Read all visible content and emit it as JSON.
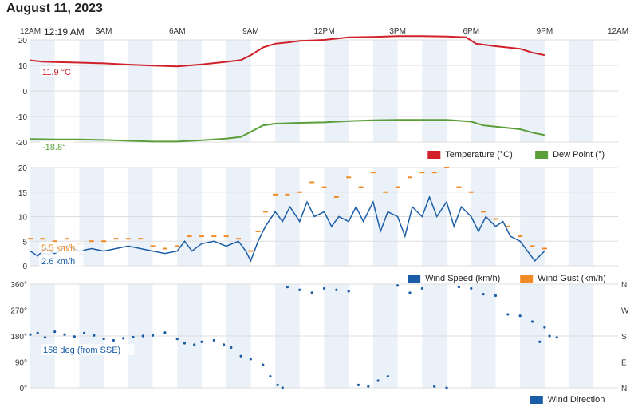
{
  "page": {
    "date": "August 11, 2023"
  },
  "time_axis": {
    "labels": [
      "12AM",
      "3AM",
      "6AM",
      "9AM",
      "12PM",
      "3PM",
      "6PM",
      "9PM",
      "12AM"
    ],
    "cursor_label": "12:19 AM"
  },
  "colors": {
    "temperature": "#d0202a",
    "dew_point": "#5a9e3a",
    "wind_speed": "#1a5da6",
    "wind_gust": "#f08a24",
    "wind_direction": "#1a5da6",
    "band": "#eaf1f8",
    "grid": "#dddddd"
  },
  "chart_data": [
    {
      "type": "line",
      "x_unit": "hours",
      "ylim": [
        -20,
        20
      ],
      "y_ticks": [
        20,
        10,
        0,
        -10,
        -20
      ],
      "legend_position": "bottom-right",
      "series": [
        {
          "name": "Temperature (°C)",
          "points": [
            [
              0,
              12
            ],
            [
              0.5,
              11.5
            ],
            [
              1,
              11.3
            ],
            [
              2,
              11.1
            ],
            [
              3,
              10.8
            ],
            [
              4,
              10.3
            ],
            [
              5,
              9.9
            ],
            [
              6,
              9.6
            ],
            [
              6.6,
              10.1
            ],
            [
              7,
              10.4
            ],
            [
              8,
              11.4
            ],
            [
              8.6,
              12.1
            ],
            [
              9,
              14
            ],
            [
              9.5,
              17
            ],
            [
              10,
              18.5
            ],
            [
              10.5,
              19
            ],
            [
              11,
              19.6
            ],
            [
              12,
              20
            ],
            [
              13,
              21
            ],
            [
              14,
              21.2
            ],
            [
              15,
              21.5
            ],
            [
              16,
              21.5
            ],
            [
              17,
              21.3
            ],
            [
              17.8,
              21
            ],
            [
              18.2,
              18.5
            ],
            [
              19,
              17.5
            ],
            [
              20,
              16.5
            ],
            [
              20.5,
              15
            ],
            [
              21,
              14
            ]
          ],
          "current_label": "11.9 °C"
        },
        {
          "name": "Dew Point (°)",
          "points": [
            [
              0,
              -18.8
            ],
            [
              1,
              -19
            ],
            [
              2,
              -19
            ],
            [
              3,
              -19.2
            ],
            [
              4,
              -19.5
            ],
            [
              5,
              -19.8
            ],
            [
              6,
              -19.8
            ],
            [
              7,
              -19.3
            ],
            [
              8,
              -18.7
            ],
            [
              8.6,
              -18
            ],
            [
              9,
              -16
            ],
            [
              9.5,
              -13.5
            ],
            [
              10,
              -12.8
            ],
            [
              11,
              -12.5
            ],
            [
              12,
              -12.3
            ],
            [
              13,
              -11.8
            ],
            [
              14,
              -11.5
            ],
            [
              15,
              -11.3
            ],
            [
              16,
              -11.3
            ],
            [
              17,
              -11.3
            ],
            [
              18,
              -12
            ],
            [
              18.5,
              -13.5
            ],
            [
              19,
              -14
            ],
            [
              19.5,
              -14.5
            ],
            [
              20,
              -15
            ],
            [
              20.5,
              -16.3
            ],
            [
              21,
              -17.3
            ]
          ],
          "current_label": "-18.8°"
        }
      ]
    },
    {
      "type": "line",
      "x_unit": "hours",
      "ylim": [
        0,
        20
      ],
      "y_ticks": [
        20,
        15,
        10,
        5,
        0
      ],
      "legend_position": "bottom-right",
      "series": [
        {
          "name": "Wind Speed (km/h)",
          "points": [
            [
              0,
              3
            ],
            [
              0.3,
              2
            ],
            [
              0.6,
              3.5
            ],
            [
              1,
              2.5
            ],
            [
              1.5,
              4
            ],
            [
              2,
              3
            ],
            [
              2.5,
              3.5
            ],
            [
              3,
              3
            ],
            [
              3.5,
              3.5
            ],
            [
              4,
              4
            ],
            [
              4.5,
              3.5
            ],
            [
              5,
              3
            ],
            [
              5.5,
              2.5
            ],
            [
              6,
              3
            ],
            [
              6.3,
              5
            ],
            [
              6.6,
              3
            ],
            [
              7,
              4.5
            ],
            [
              7.5,
              5
            ],
            [
              8,
              4
            ],
            [
              8.5,
              5
            ],
            [
              8.8,
              3
            ],
            [
              9,
              1
            ],
            [
              9.3,
              5
            ],
            [
              9.6,
              8
            ],
            [
              10,
              11
            ],
            [
              10.3,
              9
            ],
            [
              10.6,
              12
            ],
            [
              11,
              9
            ],
            [
              11.3,
              13
            ],
            [
              11.6,
              10
            ],
            [
              12,
              11
            ],
            [
              12.3,
              8
            ],
            [
              12.6,
              10
            ],
            [
              13,
              9
            ],
            [
              13.3,
              12
            ],
            [
              13.6,
              9
            ],
            [
              14,
              13
            ],
            [
              14.3,
              7
            ],
            [
              14.6,
              11
            ],
            [
              15,
              10
            ],
            [
              15.3,
              6
            ],
            [
              15.6,
              12
            ],
            [
              16,
              10
            ],
            [
              16.3,
              14
            ],
            [
              16.6,
              10
            ],
            [
              17,
              13
            ],
            [
              17.3,
              8
            ],
            [
              17.6,
              12
            ],
            [
              18,
              10
            ],
            [
              18.3,
              7
            ],
            [
              18.6,
              10
            ],
            [
              19,
              8
            ],
            [
              19.3,
              9
            ],
            [
              19.6,
              6
            ],
            [
              20,
              5
            ],
            [
              20.3,
              3
            ],
            [
              20.6,
              1
            ],
            [
              20.8,
              2
            ],
            [
              21,
              3
            ]
          ],
          "current_label": "2.6 km/h"
        },
        {
          "name": "Wind Gust (km/h)",
          "points": [
            [
              0,
              5.5
            ],
            [
              0.5,
              5.5
            ],
            [
              1,
              5
            ],
            [
              1.5,
              5.5
            ],
            [
              2,
              4.5
            ],
            [
              2.5,
              5
            ],
            [
              3,
              5
            ],
            [
              3.5,
              5.5
            ],
            [
              4,
              5.5
            ],
            [
              4.5,
              5.5
            ],
            [
              5,
              4
            ],
            [
              5.5,
              3.5
            ],
            [
              6,
              4
            ],
            [
              6.5,
              6
            ],
            [
              7,
              6
            ],
            [
              7.5,
              6
            ],
            [
              8,
              6
            ],
            [
              8.5,
              5.5
            ],
            [
              9,
              3
            ],
            [
              9.3,
              7
            ],
            [
              9.6,
              11
            ],
            [
              10,
              14.5
            ],
            [
              10.5,
              14.5
            ],
            [
              11,
              15
            ],
            [
              11.5,
              17
            ],
            [
              12,
              16
            ],
            [
              12.5,
              14
            ],
            [
              13,
              18
            ],
            [
              13.5,
              16
            ],
            [
              14,
              19
            ],
            [
              14.5,
              15
            ],
            [
              15,
              16
            ],
            [
              15.5,
              18
            ],
            [
              16,
              19
            ],
            [
              16.5,
              19
            ],
            [
              17,
              20
            ],
            [
              17.5,
              16
            ],
            [
              18,
              15
            ],
            [
              18.5,
              11
            ],
            [
              19,
              9.5
            ],
            [
              19.5,
              8
            ],
            [
              20,
              6
            ],
            [
              20.5,
              4
            ],
            [
              21,
              3.5
            ]
          ],
          "current_label": "5.5 km/h"
        }
      ]
    },
    {
      "type": "scatter",
      "x_unit": "hours",
      "ylim": [
        0,
        360
      ],
      "y_ticks": [
        360,
        270,
        180,
        90,
        0
      ],
      "y_tick_suffix": "°",
      "right_tick_labels": [
        "N",
        "W",
        "S",
        "E",
        "N"
      ],
      "legend_position": "bottom-right",
      "series": [
        {
          "name": "Wind Direction",
          "points": [
            [
              0,
              185
            ],
            [
              0.3,
              190
            ],
            [
              0.6,
              175
            ],
            [
              1,
              195
            ],
            [
              1.4,
              185
            ],
            [
              1.8,
              178
            ],
            [
              2.2,
              190
            ],
            [
              2.6,
              182
            ],
            [
              3,
              170
            ],
            [
              3.4,
              165
            ],
            [
              3.8,
              172
            ],
            [
              4.2,
              176
            ],
            [
              4.6,
              180
            ],
            [
              5,
              182
            ],
            [
              5.5,
              192
            ],
            [
              6,
              170
            ],
            [
              6.3,
              155
            ],
            [
              6.7,
              150
            ],
            [
              7,
              160
            ],
            [
              7.5,
              165
            ],
            [
              7.9,
              150
            ],
            [
              8.2,
              140
            ],
            [
              8.6,
              110
            ],
            [
              9,
              100
            ],
            [
              9.5,
              80
            ],
            [
              9.8,
              40
            ],
            [
              10.1,
              10
            ],
            [
              10.3,
              0
            ],
            [
              10.5,
              350
            ],
            [
              11,
              340
            ],
            [
              11.5,
              330
            ],
            [
              12,
              345
            ],
            [
              12.5,
              340
            ],
            [
              13,
              335
            ],
            [
              13.4,
              10
            ],
            [
              13.8,
              5
            ],
            [
              14.2,
              25
            ],
            [
              14.6,
              40
            ],
            [
              15,
              355
            ],
            [
              15.5,
              330
            ],
            [
              16,
              345
            ],
            [
              16.5,
              5
            ],
            [
              17,
              0
            ],
            [
              17.5,
              350
            ],
            [
              18,
              345
            ],
            [
              18.5,
              325
            ],
            [
              19,
              320
            ],
            [
              19.5,
              255
            ],
            [
              20,
              250
            ],
            [
              20.5,
              230
            ],
            [
              21,
              210
            ],
            [
              21.2,
              180
            ],
            [
              20.8,
              160
            ],
            [
              21.5,
              175
            ]
          ],
          "current_label": "158 deg (from SSE)"
        }
      ]
    }
  ]
}
